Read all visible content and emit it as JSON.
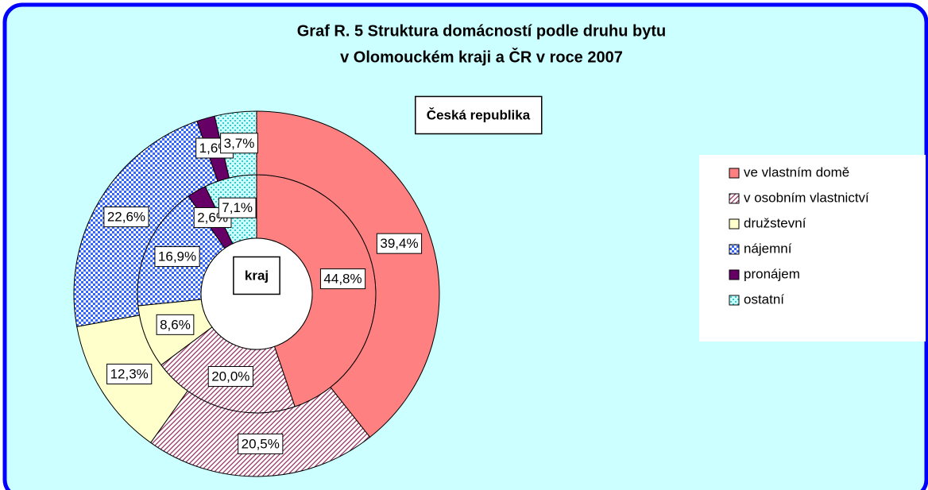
{
  "chart_data": {
    "type": "donut",
    "title": [
      "Graf R. 5 Struktura domácností podle druhu bytu",
      "v Olomouckém kraji a ČR v roce 2007"
    ],
    "categories": [
      "ve vlastním domě",
      "v osobním vlastnictví",
      "družstevní",
      "nájemní",
      "pronájem",
      "ostatní"
    ],
    "colors": [
      "#ff8080",
      "#993366",
      "#ffffcc",
      "#3366ff",
      "#660066",
      "#33cccc"
    ],
    "patterns": [
      "solid",
      "hatch",
      "solid",
      "checker",
      "solid",
      "dots"
    ],
    "series": [
      {
        "name": "kraj",
        "values": [
          44.8,
          20.0,
          8.6,
          16.9,
          2.6,
          7.1
        ],
        "value_labels": [
          "44,8%",
          "20,0%",
          "8,6%",
          "16,9%",
          "2,6%",
          "7,1%"
        ]
      },
      {
        "name": "Česká republika",
        "values": [
          39.4,
          20.5,
          12.3,
          22.6,
          1.6,
          3.7
        ],
        "value_labels": [
          "39,4%",
          "20,5%",
          "12,3%",
          "22,6%",
          "1,6%",
          "3,7%"
        ]
      }
    ]
  }
}
